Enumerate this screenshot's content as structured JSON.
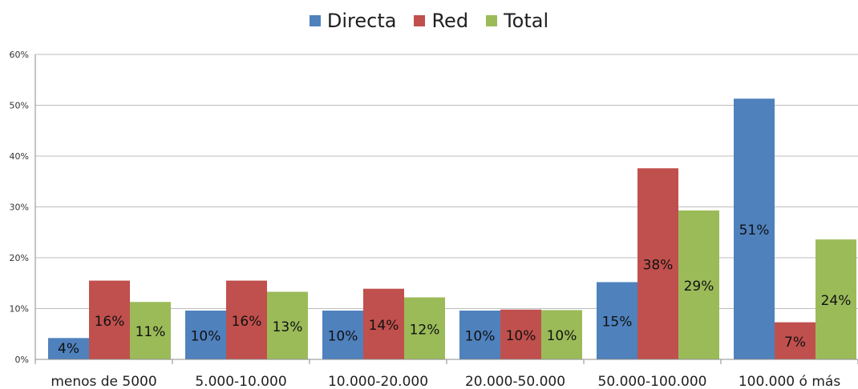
{
  "chart_data": {
    "type": "bar",
    "title": "",
    "xlabel": "",
    "ylabel": "",
    "ylim": [
      0,
      0.6
    ],
    "yticks": [
      "0%",
      "10%",
      "20%",
      "30%",
      "40%",
      "50%",
      "60%"
    ],
    "grid": true,
    "legend_position": "top-center",
    "categories": [
      "menos de 5000",
      "5.000-10.000",
      "10.000-20.000",
      "20.000-50.000",
      "50.000-100.000",
      "100.000 ó más"
    ],
    "series": [
      {
        "name": "Directa",
        "color": "#4F81BD",
        "values": [
          0.042,
          0.096,
          0.096,
          0.096,
          0.152,
          0.513
        ],
        "labels": [
          "4%",
          "10%",
          "10%",
          "10%",
          "15%",
          "51%"
        ]
      },
      {
        "name": "Red",
        "color": "#C0504D",
        "values": [
          0.155,
          0.155,
          0.139,
          0.098,
          0.376,
          0.073
        ],
        "labels": [
          "16%",
          "16%",
          "14%",
          "10%",
          "38%",
          "7%"
        ]
      },
      {
        "name": "Total",
        "color": "#9BBB59",
        "values": [
          0.113,
          0.133,
          0.122,
          0.097,
          0.293,
          0.236
        ],
        "labels": [
          "11%",
          "13%",
          "12%",
          "10%",
          "29%",
          "24%"
        ]
      }
    ]
  }
}
